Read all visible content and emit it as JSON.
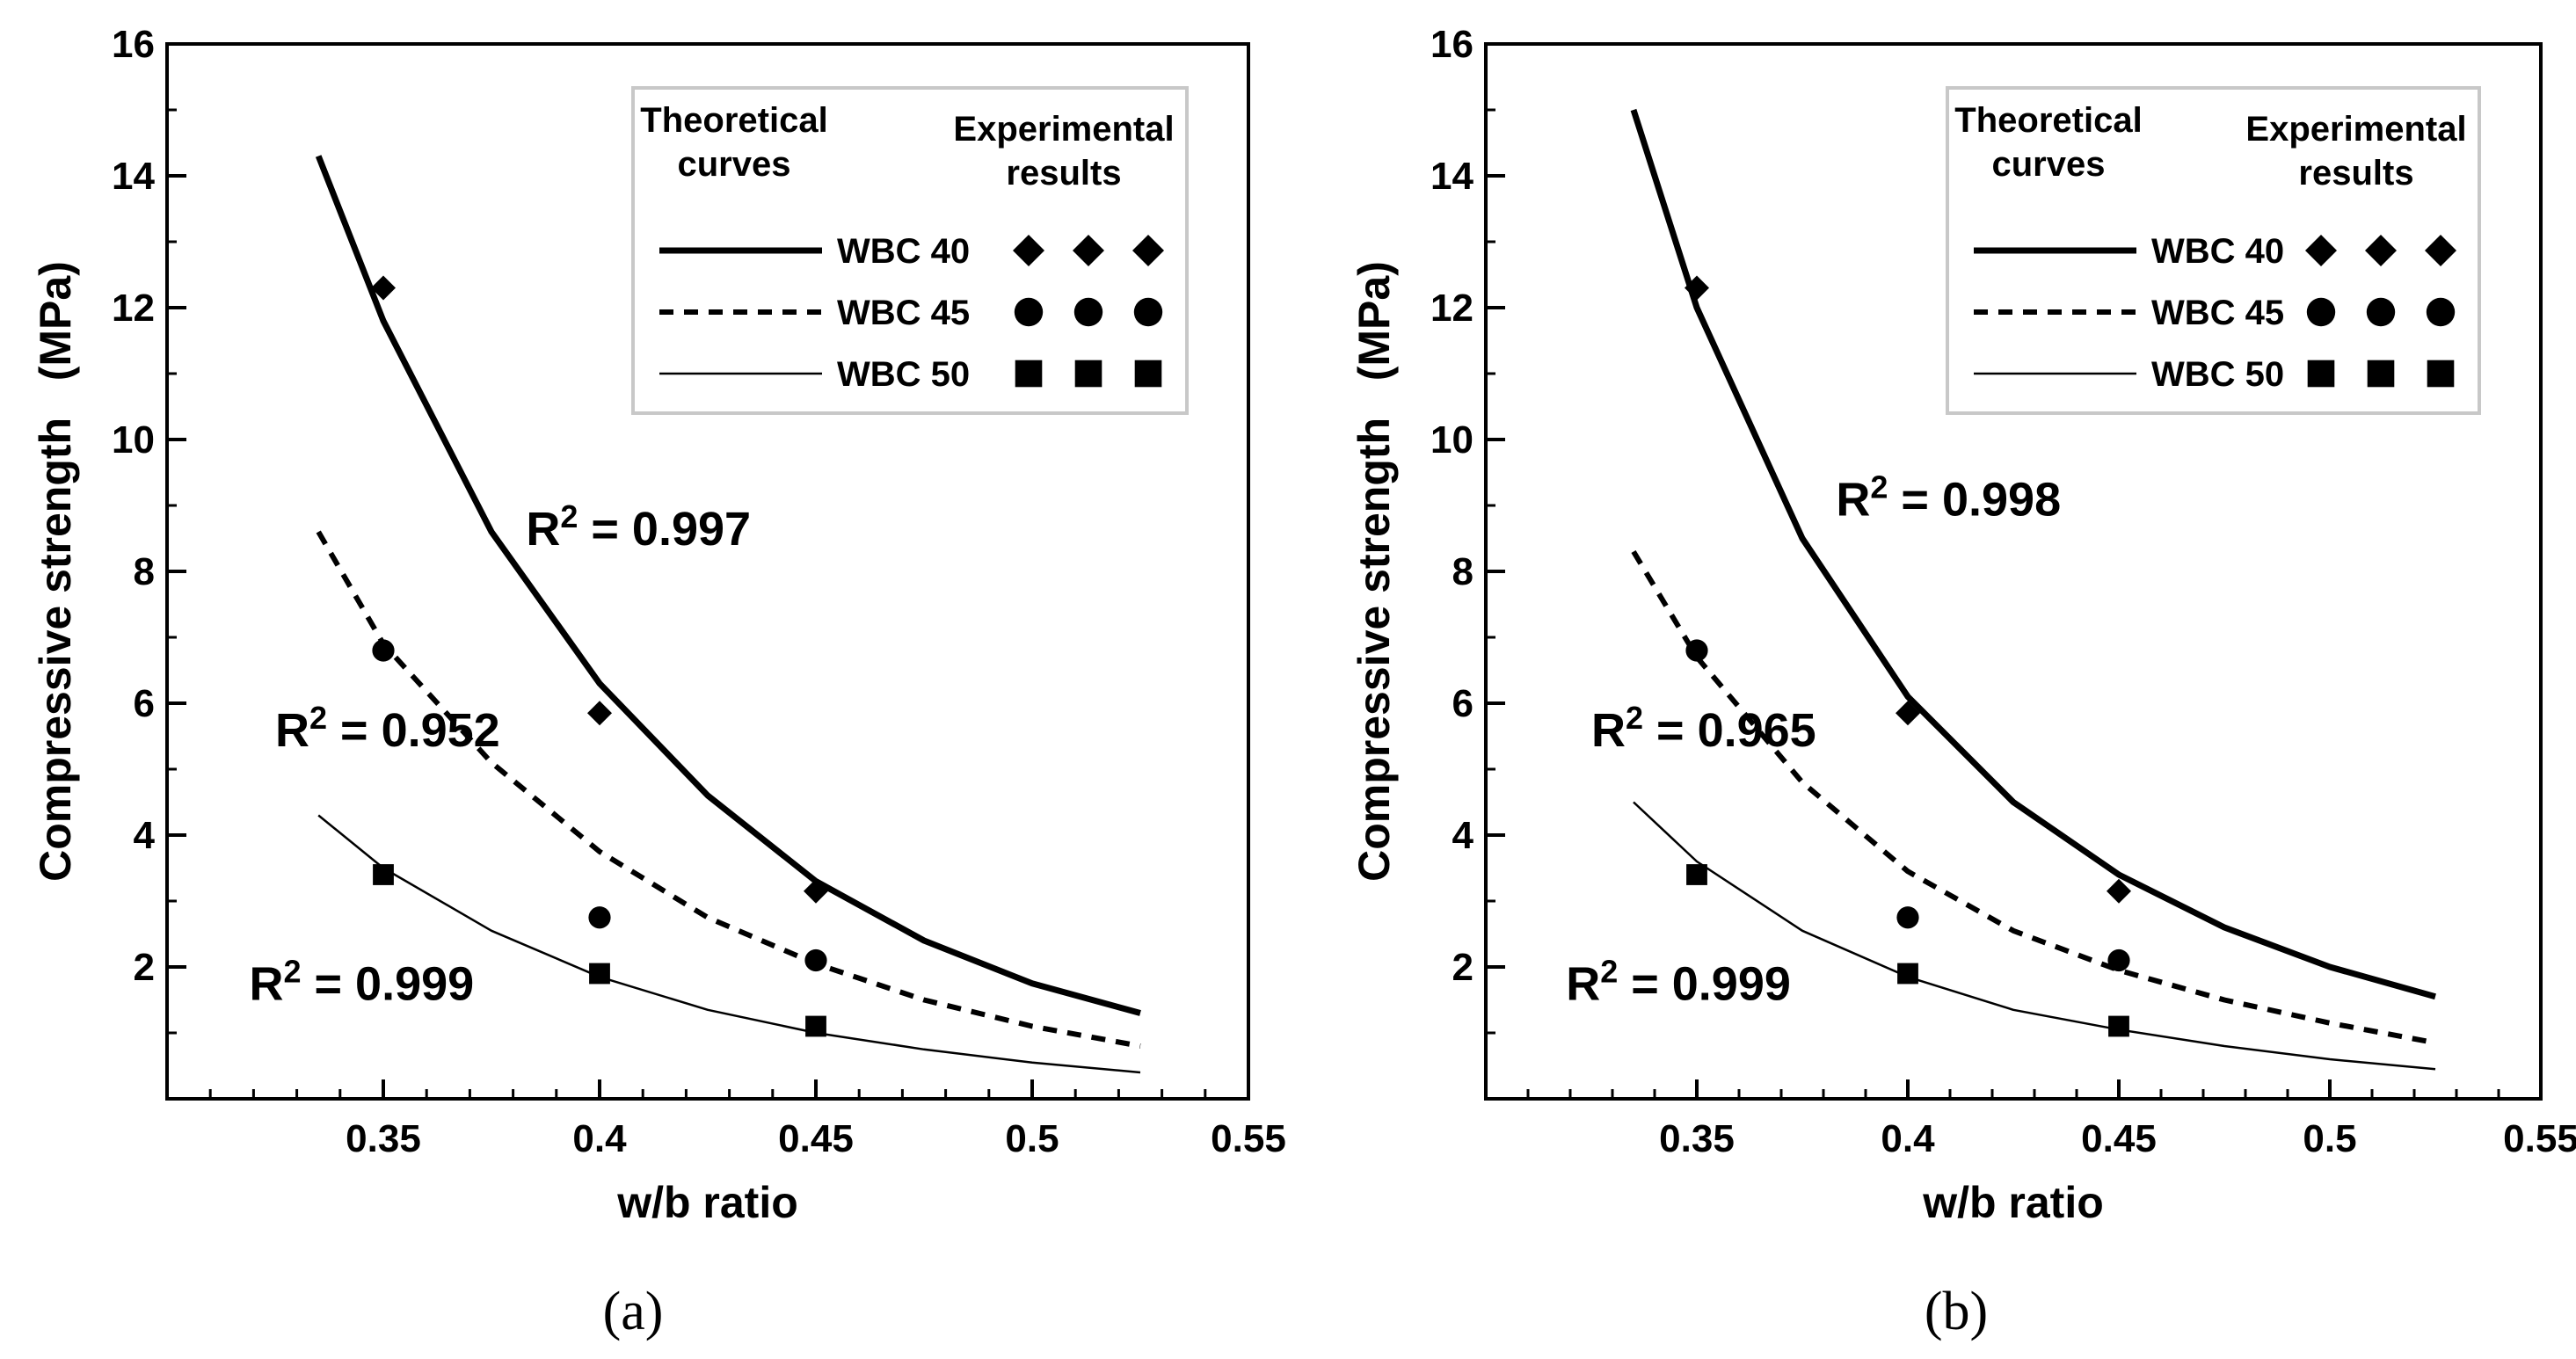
{
  "figure": {
    "captions": [
      "(a)",
      "(b)"
    ]
  },
  "chart_data": [
    {
      "type": "line",
      "panel": "a",
      "caption_letter": "a",
      "xlabel": "w/b ratio",
      "ylabel": "Compressive strength   (MPa)",
      "xlim": [
        0.3,
        0.55
      ],
      "ylim": [
        0,
        16
      ],
      "xticks": [
        0.35,
        0.4,
        0.45,
        0.5,
        0.55
      ],
      "xtick_labels": [
        "0.35",
        "0.4",
        "0.45",
        "0.5",
        "0.55"
      ],
      "yticks": [
        2,
        4,
        6,
        8,
        10,
        12,
        14,
        16
      ],
      "ytick_labels": [
        "2",
        "4",
        "6",
        "8",
        "10",
        "12",
        "14",
        "16"
      ],
      "legend": {
        "position": "top-right",
        "header_theoretical": [
          "Theoretical",
          "curves"
        ],
        "header_experimental": [
          "Experimental",
          "results"
        ]
      },
      "series": [
        {
          "name": "WBC 40",
          "style": "solid-thick",
          "marker": "diamond",
          "curve": {
            "x": [
              0.335,
              0.35,
              0.375,
              0.4,
              0.425,
              0.45,
              0.475,
              0.5,
              0.525
            ],
            "y": [
              14.3,
              11.8,
              8.6,
              6.3,
              4.6,
              3.3,
              2.4,
              1.75,
              1.3
            ]
          },
          "points": {
            "x": [
              0.35,
              0.4,
              0.45
            ],
            "y": [
              12.3,
              5.85,
              3.15
            ]
          }
        },
        {
          "name": "WBC 45",
          "style": "dashed",
          "marker": "circle",
          "curve": {
            "x": [
              0.335,
              0.35,
              0.375,
              0.4,
              0.425,
              0.45,
              0.475,
              0.5,
              0.525
            ],
            "y": [
              8.6,
              6.9,
              5.1,
              3.75,
              2.75,
              2.05,
              1.5,
              1.1,
              0.8
            ]
          },
          "points": {
            "x": [
              0.35,
              0.4,
              0.45
            ],
            "y": [
              6.8,
              2.75,
              2.1
            ]
          }
        },
        {
          "name": "WBC 50",
          "style": "solid-thin",
          "marker": "square",
          "curve": {
            "x": [
              0.335,
              0.35,
              0.375,
              0.4,
              0.425,
              0.45,
              0.475,
              0.5,
              0.525
            ],
            "y": [
              4.3,
              3.5,
              2.55,
              1.85,
              1.35,
              1.0,
              0.75,
              0.55,
              0.4
            ]
          },
          "points": {
            "x": [
              0.35,
              0.4,
              0.45
            ],
            "y": [
              3.4,
              1.9,
              1.1
            ]
          }
        }
      ],
      "annotations": [
        {
          "text": "= 0.997",
          "anchor": "WBC 40",
          "x": 0.383,
          "y": 8.4
        },
        {
          "text": "= 0.952",
          "anchor": "WBC 45",
          "x": 0.325,
          "y": 5.35
        },
        {
          "text": "= 0.999",
          "anchor": "WBC 50",
          "x": 0.319,
          "y": 1.5
        }
      ]
    },
    {
      "type": "line",
      "panel": "b",
      "caption_letter": "b",
      "xlabel": "w/b ratio",
      "ylabel": "Compressive strength   (MPa)",
      "xlim": [
        0.3,
        0.55
      ],
      "ylim": [
        0,
        16
      ],
      "xticks": [
        0.35,
        0.4,
        0.45,
        0.5,
        0.55
      ],
      "xtick_labels": [
        "0.35",
        "0.4",
        "0.45",
        "0.5",
        "0.55"
      ],
      "yticks": [
        2,
        4,
        6,
        8,
        10,
        12,
        14,
        16
      ],
      "ytick_labels": [
        "2",
        "4",
        "6",
        "8",
        "10",
        "12",
        "14",
        "16"
      ],
      "legend": {
        "position": "top-right",
        "header_theoretical": [
          "Theoretical",
          "curves"
        ],
        "header_experimental": [
          "Experimental",
          "results"
        ]
      },
      "series": [
        {
          "name": "WBC 40",
          "style": "solid-thick",
          "marker": "diamond",
          "curve": {
            "x": [
              0.335,
              0.35,
              0.375,
              0.4,
              0.425,
              0.45,
              0.475,
              0.5,
              0.525
            ],
            "y": [
              15.0,
              12.0,
              8.5,
              6.1,
              4.5,
              3.4,
              2.6,
              2.0,
              1.55
            ]
          },
          "points": {
            "x": [
              0.35,
              0.4,
              0.45
            ],
            "y": [
              12.3,
              5.85,
              3.15
            ]
          }
        },
        {
          "name": "WBC 45",
          "style": "dashed",
          "marker": "circle",
          "curve": {
            "x": [
              0.335,
              0.35,
              0.375,
              0.4,
              0.425,
              0.45,
              0.475,
              0.5,
              0.525
            ],
            "y": [
              8.3,
              6.7,
              4.8,
              3.45,
              2.55,
              1.95,
              1.5,
              1.15,
              0.85
            ]
          },
          "points": {
            "x": [
              0.35,
              0.4,
              0.45
            ],
            "y": [
              6.8,
              2.75,
              2.1
            ]
          }
        },
        {
          "name": "WBC 50",
          "style": "solid-thin",
          "marker": "square",
          "curve": {
            "x": [
              0.335,
              0.35,
              0.375,
              0.4,
              0.425,
              0.45,
              0.475,
              0.5,
              0.525
            ],
            "y": [
              4.5,
              3.6,
              2.55,
              1.85,
              1.35,
              1.05,
              0.8,
              0.6,
              0.45
            ]
          },
          "points": {
            "x": [
              0.35,
              0.4,
              0.45
            ],
            "y": [
              3.4,
              1.9,
              1.1
            ]
          }
        }
      ],
      "annotations": [
        {
          "text": "= 0.998",
          "anchor": "WBC 40",
          "x": 0.383,
          "y": 8.85
        },
        {
          "text": "= 0.965",
          "anchor": "WBC 45",
          "x": 0.325,
          "y": 5.35
        },
        {
          "text": "= 0.999",
          "anchor": "WBC 50",
          "x": 0.319,
          "y": 1.5
        }
      ]
    }
  ]
}
